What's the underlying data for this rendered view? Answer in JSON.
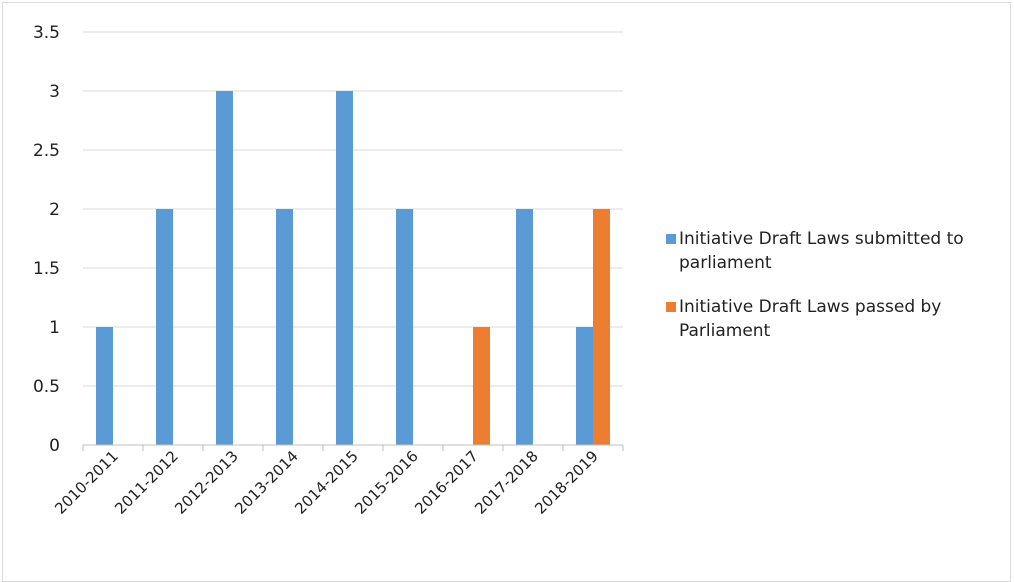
{
  "chart_data": {
    "type": "bar",
    "title": "",
    "xlabel": "",
    "ylabel": "",
    "categories": [
      "2010-2011",
      "2011-2012",
      "2012-2013",
      "2013-2014",
      "2014-2015",
      "2015-2016",
      "2016-2017",
      "2017-2018",
      "2018-2019"
    ],
    "series": [
      {
        "name": "Initiative Draft Laws submitted to parliament",
        "color": "#5b9bd5",
        "values": [
          1,
          2,
          3,
          2,
          3,
          2,
          0,
          2,
          1
        ]
      },
      {
        "name": "Initiative Draft Laws passed by Parliament",
        "color": "#ed7d31",
        "values": [
          0,
          0,
          0,
          0,
          0,
          0,
          1,
          0,
          2
        ]
      }
    ],
    "ylim": [
      0,
      3.5
    ],
    "yticks": [
      "0",
      "0.5",
      "1",
      "1.5",
      "2",
      "2.5",
      "3",
      "3.5"
    ],
    "grid": true,
    "legend_position": "right"
  }
}
